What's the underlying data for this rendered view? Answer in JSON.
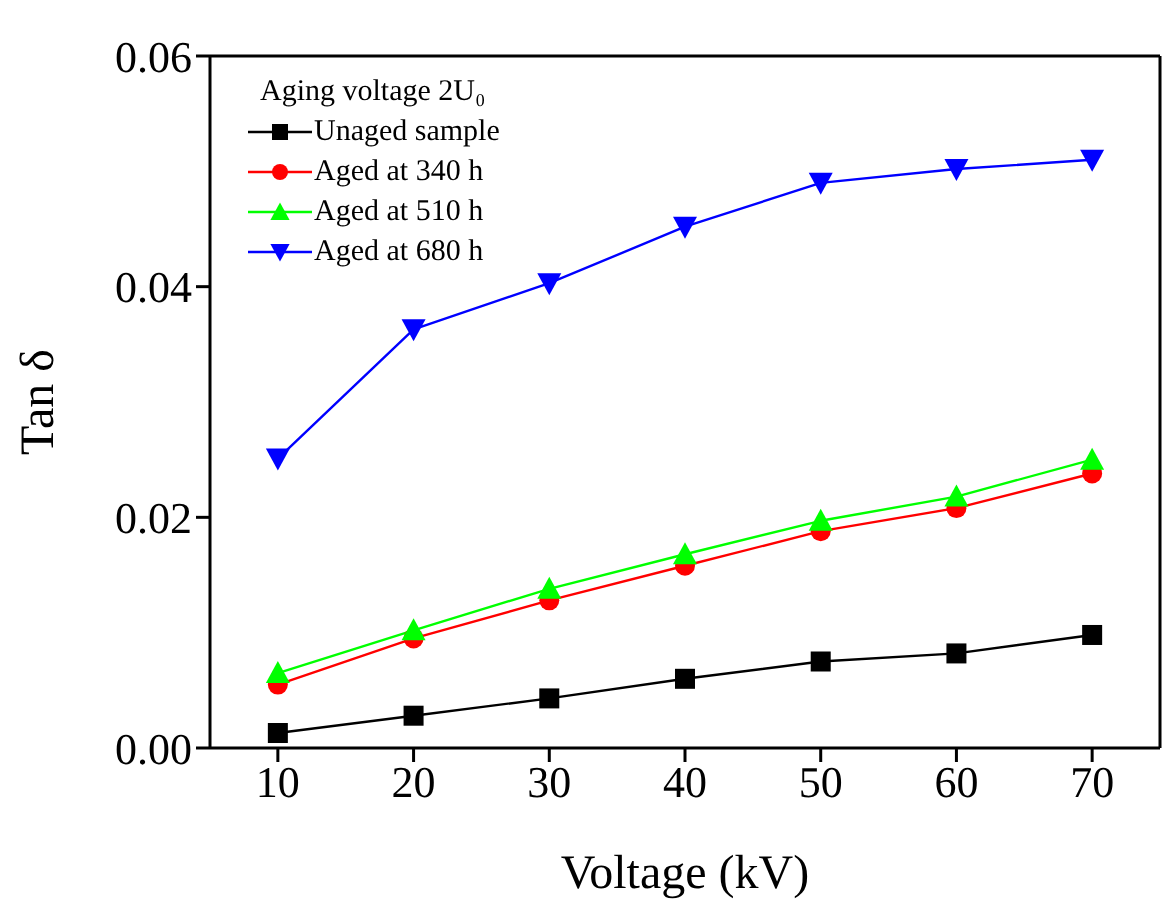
{
  "chart_data": {
    "type": "line",
    "xlabel": "Voltage (kV)",
    "ylabel": "Tan δ",
    "legend_title": "Aging voltage 2U₀",
    "x": [
      10,
      20,
      30,
      40,
      50,
      60,
      70
    ],
    "series": [
      {
        "name": "Unaged sample",
        "color": "#000000",
        "marker": "square",
        "values": [
          0.0013,
          0.0028,
          0.0043,
          0.006,
          0.0075,
          0.0082,
          0.0098
        ]
      },
      {
        "name": "Aged at 340 h",
        "color": "#ff0000",
        "marker": "circle",
        "values": [
          0.0055,
          0.0095,
          0.0128,
          0.0158,
          0.0188,
          0.0208,
          0.0238
        ]
      },
      {
        "name": "Aged at 510 h",
        "color": "#00ff00",
        "marker": "triangle",
        "values": [
          0.0065,
          0.0102,
          0.0138,
          0.0168,
          0.0197,
          0.0218,
          0.025
        ]
      },
      {
        "name": "Aged at 680 h",
        "color": "#0000ff",
        "marker": "triangle-down",
        "values": [
          0.0251,
          0.0363,
          0.0403,
          0.0452,
          0.049,
          0.0502,
          0.051
        ]
      }
    ],
    "xlim": [
      5,
      75
    ],
    "xticks": [
      10,
      20,
      30,
      40,
      50,
      60,
      70
    ],
    "ylim": [
      0,
      0.06
    ],
    "yticks": [
      {
        "value": 0,
        "label": "0.00"
      },
      {
        "value": 0.02,
        "label": "0.02"
      },
      {
        "value": 0.04,
        "label": "0.04"
      },
      {
        "value": 0.06,
        "label": "0.06"
      }
    ],
    "legend": "top left",
    "grid": false,
    "line_style": "solid"
  }
}
